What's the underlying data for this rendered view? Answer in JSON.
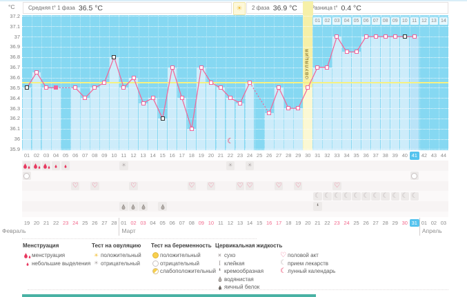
{
  "unit": "°C",
  "header": {
    "phase1_label": "Средняя t° 1 фаза",
    "phase1_value": "36.5 °C",
    "phase2_label": "2 фаза",
    "phase2_value": "36.9 °C",
    "diff_label": "Разница t°",
    "diff_value": "0.4 °C"
  },
  "icons": {
    "sun": "☀",
    "moon": "☾",
    "heart": "♡",
    "cross": "×",
    "sticky": "I",
    "comma": ","
  },
  "colors": {
    "accent_pink": "#f0699a",
    "menstruation_red": "#e8375f",
    "chart_blue": "#86d8f2",
    "band_blue": "#cdecfa",
    "band_today": "#b9e3f8",
    "ovulation_yellow": "#f6f0a8",
    "coverline_yellow": "#f7f180",
    "highlight_blue": "#55c3ee",
    "teal_bar": "#49b2a4"
  },
  "chart_data": {
    "type": "line",
    "ylabel": "°C",
    "ylim": [
      35.9,
      37.2
    ],
    "ytick_step": 0.1,
    "yticks": [
      "37.2",
      "37.1",
      "37",
      "36.9",
      "36.8",
      "36.7",
      "36.6",
      "36.5",
      "36.4",
      "36.3",
      "36.2",
      "36.1",
      "36",
      "35.9"
    ],
    "coverline": 36.55,
    "ovulation_day": 30,
    "ovulation_label": "ОВУЛЯЦИЯ",
    "highlighted_day": 41,
    "cycle_day_labels": [
      "01",
      "02",
      "03",
      "04",
      "05",
      "06",
      "07",
      "08",
      "09",
      "10",
      "11",
      "12",
      "13",
      "14",
      "15",
      "16",
      "17",
      "18",
      "19",
      "20",
      "21",
      "22",
      "23",
      "24",
      "25",
      "26",
      "27",
      "28",
      "29",
      "30",
      "31",
      "32",
      "33",
      "34",
      "35",
      "36",
      "37",
      "38",
      "39",
      "40",
      "41",
      "42",
      "43",
      "44"
    ],
    "post_ovulation_labels": [
      "01",
      "02",
      "03",
      "04",
      "05",
      "06",
      "07",
      "08",
      "09",
      "10",
      "11",
      "12",
      "13",
      "14"
    ],
    "temps": [
      {
        "day": 1,
        "t": 36.5,
        "marker": "black"
      },
      {
        "day": 2,
        "t": 36.65
      },
      {
        "day": 3,
        "t": 36.5
      },
      {
        "day": 4,
        "t": 36.5,
        "marker": "filled"
      },
      {
        "day": 5,
        "t": null
      },
      {
        "day": 6,
        "t": 36.5
      },
      {
        "day": 7,
        "t": 36.4
      },
      {
        "day": 8,
        "t": 36.5
      },
      {
        "day": 9,
        "t": 36.55
      },
      {
        "day": 10,
        "t": 36.8,
        "marker": "black"
      },
      {
        "day": 11,
        "t": 36.5
      },
      {
        "day": 12,
        "t": 36.6
      },
      {
        "day": 13,
        "t": 36.35
      },
      {
        "day": 14,
        "t": 36.4
      },
      {
        "day": 15,
        "t": 36.2,
        "marker": "black"
      },
      {
        "day": 16,
        "t": 36.7
      },
      {
        "day": 17,
        "t": 36.4
      },
      {
        "day": 18,
        "t": 36.1
      },
      {
        "day": 19,
        "t": 36.7
      },
      {
        "day": 20,
        "t": 36.55
      },
      {
        "day": 21,
        "t": 36.5
      },
      {
        "day": 22,
        "t": 36.4
      },
      {
        "day": 23,
        "t": 36.35
      },
      {
        "day": 24,
        "t": 36.55
      },
      {
        "day": 25,
        "t": null
      },
      {
        "day": 26,
        "t": 36.25
      },
      {
        "day": 27,
        "t": 36.5
      },
      {
        "day": 28,
        "t": 36.3
      },
      {
        "day": 29,
        "t": 36.3
      },
      {
        "day": 30,
        "t": 36.5
      },
      {
        "day": 31,
        "t": 36.7
      },
      {
        "day": 32,
        "t": 36.7
      },
      {
        "day": 33,
        "t": 37.0
      },
      {
        "day": 34,
        "t": 36.85
      },
      {
        "day": 35,
        "t": 36.85
      },
      {
        "day": 36,
        "t": 37.0
      },
      {
        "day": 37,
        "t": 37.0
      },
      {
        "day": 38,
        "t": 37.0
      },
      {
        "day": 39,
        "t": 37.0
      },
      {
        "day": 40,
        "t": 37.0,
        "marker": "black"
      },
      {
        "day": 41,
        "t": 37.0
      },
      {
        "day": 42,
        "t": null
      },
      {
        "day": 43,
        "t": null
      },
      {
        "day": 44,
        "t": null
      }
    ]
  },
  "symbols": {
    "menstruation": [
      1,
      2,
      3
    ],
    "spotting": [
      4,
      5
    ],
    "ovulation_test_negative": [
      11,
      22,
      24
    ],
    "pregnancy_test_negative": [
      1,
      41
    ],
    "intercourse": [
      6,
      8,
      12,
      18,
      20,
      23,
      24,
      27,
      29,
      33
    ],
    "medication": [
      31,
      32,
      33,
      34,
      35,
      36,
      37,
      38,
      39,
      40,
      41
    ],
    "cervical_watery": [
      11,
      12,
      13,
      15
    ],
    "cervical_creamy": [
      31
    ],
    "moon_calendar_day": 22
  },
  "dates": [
    {
      "d": "19"
    },
    {
      "d": "20"
    },
    {
      "d": "21"
    },
    {
      "d": "22"
    },
    {
      "d": "23",
      "red": true
    },
    {
      "d": "24",
      "red": true
    },
    {
      "d": "25"
    },
    {
      "d": "26"
    },
    {
      "d": "27"
    },
    {
      "d": "28"
    },
    {
      "d": "01"
    },
    {
      "d": "02",
      "red": true
    },
    {
      "d": "03",
      "red": true
    },
    {
      "d": "04"
    },
    {
      "d": "05"
    },
    {
      "d": "06"
    },
    {
      "d": "07"
    },
    {
      "d": "08"
    },
    {
      "d": "09",
      "red": true
    },
    {
      "d": "10",
      "red": true
    },
    {
      "d": "11"
    },
    {
      "d": "12"
    },
    {
      "d": "13"
    },
    {
      "d": "14"
    },
    {
      "d": "15"
    },
    {
      "d": "16",
      "red": true
    },
    {
      "d": "17",
      "red": true
    },
    {
      "d": "18"
    },
    {
      "d": "19"
    },
    {
      "d": "20"
    },
    {
      "d": "21"
    },
    {
      "d": "22"
    },
    {
      "d": "23",
      "red": true
    },
    {
      "d": "24",
      "red": true
    },
    {
      "d": "25"
    },
    {
      "d": "26"
    },
    {
      "d": "27"
    },
    {
      "d": "28"
    },
    {
      "d": "29"
    },
    {
      "d": "30",
      "red": true
    },
    {
      "d": "31",
      "today": true
    },
    {
      "d": "01"
    },
    {
      "d": "02"
    },
    {
      "d": "03"
    }
  ],
  "months": [
    {
      "name": "Февраль",
      "start": 1
    },
    {
      "name": "Март",
      "start": 11
    },
    {
      "name": "Апрель",
      "start": 42
    }
  ],
  "legend": {
    "columns": [
      {
        "title": "Менструация",
        "items": [
          {
            "icon": "drop-heavy",
            "label": "менструация"
          },
          {
            "icon": "drop-light",
            "label": "небольшие выделения"
          }
        ]
      },
      {
        "title": "Тест на овуляцию",
        "items": [
          {
            "icon": "sun-yellow",
            "label": "положительный"
          },
          {
            "icon": "sun-gray",
            "label": "отрицательный"
          }
        ]
      },
      {
        "title": "Тест на беременность",
        "items": [
          {
            "icon": "circle-yellow",
            "label": "положительный"
          },
          {
            "icon": "circle-white",
            "label": "отрицательный"
          },
          {
            "icon": "circle-half",
            "label": "слабоположительный"
          }
        ]
      },
      {
        "title": "Цервикальная жидкость",
        "items": [
          {
            "icon": "cross",
            "label": "сухо"
          },
          {
            "icon": "sticky",
            "label": "клейкая"
          },
          {
            "icon": "comma",
            "label": "кремообразная"
          },
          {
            "icon": "drop-outline",
            "label": "водянистая"
          },
          {
            "icon": "drop-dark",
            "label": "яичный белок"
          }
        ]
      },
      {
        "title": "",
        "items": [
          {
            "icon": "heart",
            "label": "половой акт"
          },
          {
            "icon": "moon-gray",
            "label": "прием лекарств"
          },
          {
            "icon": "moon-red",
            "label": "лунный календарь"
          }
        ]
      }
    ]
  }
}
